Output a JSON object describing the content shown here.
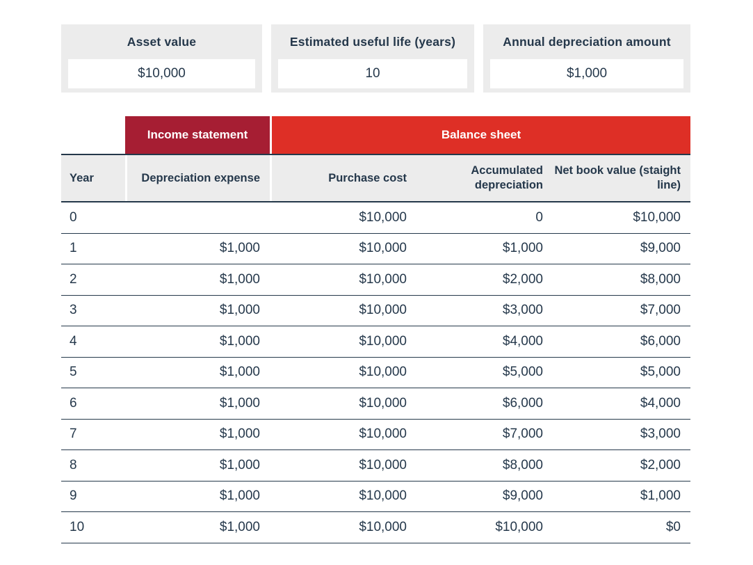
{
  "colors": {
    "income_header_red": "#A61E33",
    "balance_header_red": "#DE2F26",
    "panel_gray": "#ECECEC",
    "text_navy": "#25384B",
    "line_navy": "#24384A"
  },
  "inputs": [
    {
      "label": "Asset value",
      "value": "$10,000"
    },
    {
      "label": "Estimated useful life (years)",
      "value": "10"
    },
    {
      "label": "Annual depreciation amount",
      "value": "$1,000"
    }
  ],
  "table": {
    "group_headers": [
      {
        "label": "Income statement"
      },
      {
        "label": "Balance sheet"
      }
    ],
    "columns": {
      "year": "Year",
      "depreciation_expense": "Depreciation expense",
      "purchase_cost": "Purchase cost",
      "accumulated_depreciation": "Accumulated depreciation",
      "net_book_value": "Net book value (staight line)"
    },
    "rows": [
      {
        "year": "0",
        "dep": "",
        "pc": "$10,000",
        "ad": "0",
        "nbv": "$10,000"
      },
      {
        "year": "1",
        "dep": "$1,000",
        "pc": "$10,000",
        "ad": "$1,000",
        "nbv": "$9,000"
      },
      {
        "year": "2",
        "dep": "$1,000",
        "pc": "$10,000",
        "ad": "$2,000",
        "nbv": "$8,000"
      },
      {
        "year": "3",
        "dep": "$1,000",
        "pc": "$10,000",
        "ad": "$3,000",
        "nbv": "$7,000"
      },
      {
        "year": "4",
        "dep": "$1,000",
        "pc": "$10,000",
        "ad": "$4,000",
        "nbv": "$6,000"
      },
      {
        "year": "5",
        "dep": "$1,000",
        "pc": "$10,000",
        "ad": "$5,000",
        "nbv": "$5,000"
      },
      {
        "year": "6",
        "dep": "$1,000",
        "pc": "$10,000",
        "ad": "$6,000",
        "nbv": "$4,000"
      },
      {
        "year": "7",
        "dep": "$1,000",
        "pc": "$10,000",
        "ad": "$7,000",
        "nbv": "$3,000"
      },
      {
        "year": "8",
        "dep": "$1,000",
        "pc": "$10,000",
        "ad": "$8,000",
        "nbv": "$2,000"
      },
      {
        "year": "9",
        "dep": "$1,000",
        "pc": "$10,000",
        "ad": "$9,000",
        "nbv": "$1,000"
      },
      {
        "year": "10",
        "dep": "$1,000",
        "pc": "$10,000",
        "ad": "$10,000",
        "nbv": "$0"
      }
    ]
  }
}
